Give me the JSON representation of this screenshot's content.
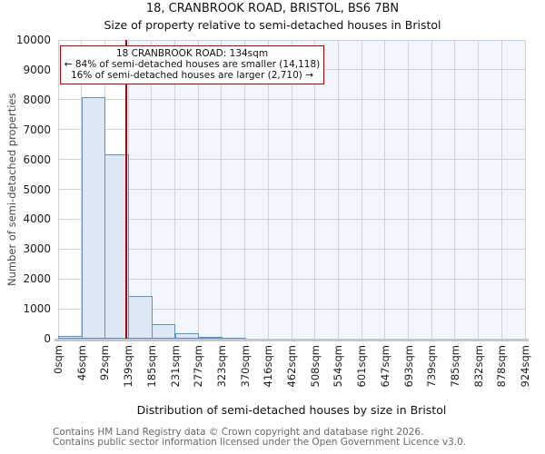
{
  "title": "18, CRANBROOK ROAD, BRISTOL, BS6 7BN",
  "subtitle": "Size of property relative to semi-detached houses in Bristol",
  "annotation": {
    "line1": "18 CRANBROOK ROAD: 134sqm",
    "line2": "← 84% of semi-detached houses are smaller (14,118)",
    "line3": "16% of semi-detached houses are larger (2,710) →"
  },
  "chart_data": {
    "type": "bar",
    "title": "18, CRANBROOK ROAD, BRISTOL, BS6 7BN",
    "subtitle": "Size of property relative to semi-detached houses in Bristol",
    "xlabel": "Distribution of semi-detached houses by size in Bristol",
    "ylabel": "Number of semi-detached properties",
    "ylim": [
      0,
      10000
    ],
    "ytick_interval": 1000,
    "y_ticks": [
      "0",
      "1000",
      "2000",
      "3000",
      "4000",
      "5000",
      "6000",
      "7000",
      "8000",
      "9000",
      "10000"
    ],
    "x_ticks": [
      "0sqm",
      "46sqm",
      "92sqm",
      "139sqm",
      "185sqm",
      "231sqm",
      "277sqm",
      "323sqm",
      "370sqm",
      "416sqm",
      "462sqm",
      "508sqm",
      "554sqm",
      "601sqm",
      "647sqm",
      "693sqm",
      "739sqm",
      "785sqm",
      "832sqm",
      "878sqm",
      "924sqm"
    ],
    "x_range_sqm": [
      0,
      924
    ],
    "bin_count": 20,
    "bin_width_sqm": 46.2,
    "values": [
      100,
      8100,
      6170,
      1430,
      480,
      190,
      70,
      40,
      0,
      0,
      0,
      0,
      0,
      0,
      0,
      0,
      0,
      0,
      0,
      0
    ],
    "marker": {
      "label": "18 CRANBROOK ROAD",
      "value_sqm": 134
    },
    "grid": true,
    "legend": false,
    "shaded_region": "right of marker line"
  },
  "footer": {
    "line1": "Contains HM Land Registry data © Crown copyright and database right 2026.",
    "line2": "Contains public sector information licensed under the Open Government Licence v3.0."
  },
  "colors": {
    "bar_fill": "#dde7f5",
    "bar_border": "#5f8fc7",
    "marker_line": "#b40000",
    "annotation_border": "#b40000",
    "shade_region": "#f1f5fc",
    "gridline": "#d2d2d6",
    "axis_line": "#c3c7cb",
    "title_text": "#111111",
    "tick_text": "#1a1a1a",
    "axis_label_text": "#4a4a4a",
    "footer_text": "#686868"
  }
}
